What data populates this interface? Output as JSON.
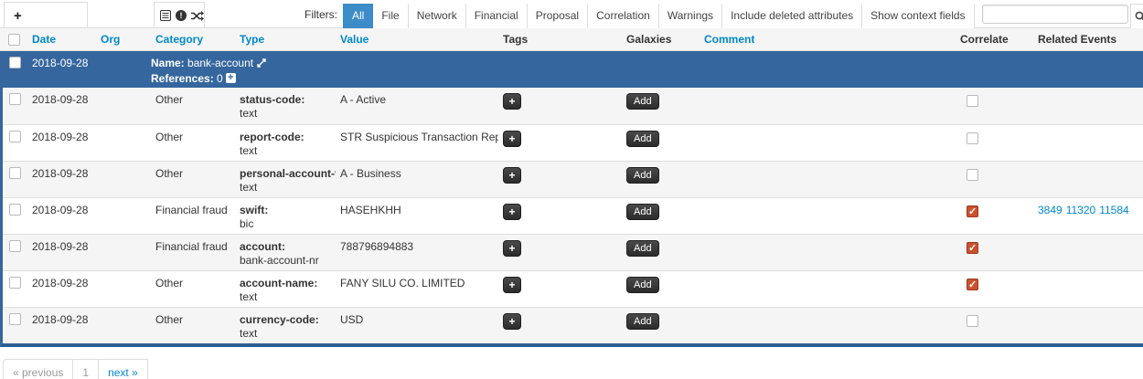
{
  "toolbar": {
    "add_attribute_label": "+",
    "filters_label": "Filters:",
    "filter_tabs": [
      "All",
      "File",
      "Network",
      "Financial",
      "Proposal",
      "Correlation",
      "Warnings",
      "Include deleted attributes",
      "Show context fields"
    ],
    "active_filter": "All",
    "search_value": ""
  },
  "table": {
    "columns": [
      {
        "label": "Date",
        "sortable": true
      },
      {
        "label": "Org",
        "sortable": true
      },
      {
        "label": "Category",
        "sortable": true
      },
      {
        "label": "Type",
        "sortable": true
      },
      {
        "label": "Value",
        "sortable": true
      },
      {
        "label": "Tags",
        "sortable": false
      },
      {
        "label": "Galaxies",
        "sortable": false
      },
      {
        "label": "Comment",
        "sortable": true
      },
      {
        "label": "Correlate",
        "sortable": false
      },
      {
        "label": "Related Events",
        "sortable": false
      }
    ],
    "object_row": {
      "date": "2018-09-28",
      "name_label": "Name:",
      "name": "bank-account",
      "references_label": "References:",
      "references_count": "0"
    },
    "tag_add_label": "+",
    "galaxy_add_label": "Add",
    "rows": [
      {
        "date": "2018-09-28",
        "org": "",
        "category": "Other",
        "type": "status-code:",
        "subtype": "text",
        "value": "A - Active",
        "comment": "",
        "correlated": false,
        "related_events": []
      },
      {
        "date": "2018-09-28",
        "org": "",
        "category": "Other",
        "type": "report-code:",
        "subtype": "text",
        "value": "STR Suspicious Transaction Report",
        "comment": "",
        "correlated": false,
        "related_events": []
      },
      {
        "date": "2018-09-28",
        "org": "",
        "category": "Other",
        "type": "personal-account-type:",
        "subtype": "text",
        "value": "A - Business",
        "comment": "",
        "correlated": false,
        "related_events": []
      },
      {
        "date": "2018-09-28",
        "org": "",
        "category": "Financial fraud",
        "type": "swift:",
        "subtype": "bic",
        "value": "HASEHKHH",
        "comment": "",
        "correlated": true,
        "related_events": [
          "3849",
          "11320",
          "11584"
        ]
      },
      {
        "date": "2018-09-28",
        "org": "",
        "category": "Financial fraud",
        "type": "account:",
        "subtype": "bank-account-nr",
        "value": "788796894883",
        "comment": "",
        "correlated": true,
        "related_events": []
      },
      {
        "date": "2018-09-28",
        "org": "",
        "category": "Other",
        "type": "account-name:",
        "subtype": "text",
        "value": "FANY SILU CO. LIMITED",
        "comment": "",
        "correlated": true,
        "related_events": []
      },
      {
        "date": "2018-09-28",
        "org": "",
        "category": "Other",
        "type": "currency-code:",
        "subtype": "text",
        "value": "USD",
        "comment": "",
        "correlated": false,
        "related_events": []
      }
    ]
  },
  "pagination": {
    "previous_label": "« previous",
    "current_page": "1",
    "next_label": "next »"
  },
  "colors": {
    "object_row_blue": "#35669e",
    "object_border_blue": "#2e5d93",
    "active_filter_blue": "#3c8cc7",
    "link_blue": "#0088cc",
    "correlate_checked_orange": "#c9512e",
    "dark_button": "#363636"
  }
}
